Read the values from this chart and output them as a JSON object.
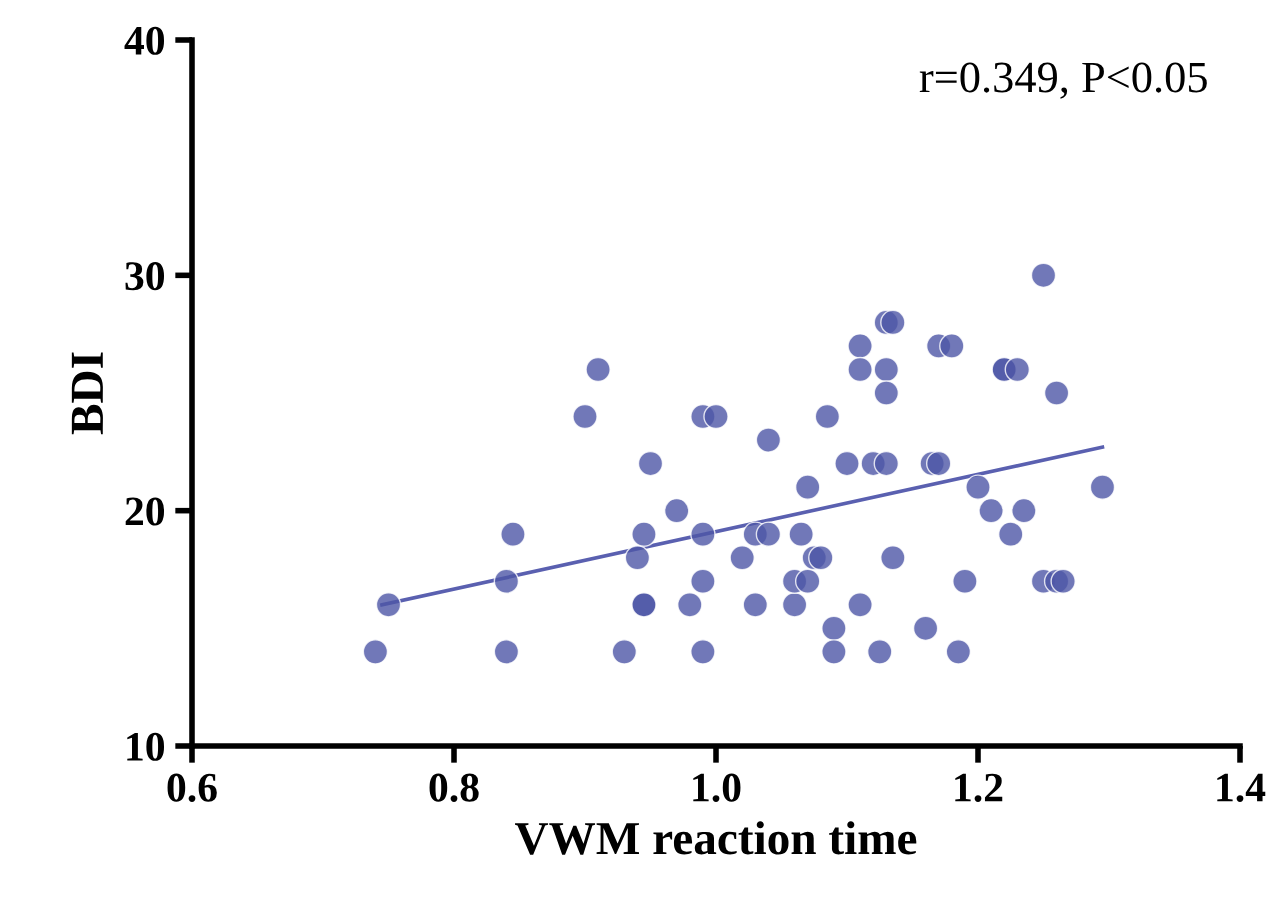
{
  "chart_data": {
    "type": "scatter",
    "xlabel": "VWM reaction time",
    "ylabel": "BDI",
    "annotations": [
      "r=0.349, P<0.05"
    ],
    "xlim": [
      0.6,
      1.4
    ],
    "ylim": [
      10,
      40
    ],
    "xticks": [
      {
        "value": 0.6,
        "label": "0.6"
      },
      {
        "value": 0.8,
        "label": "0.8"
      },
      {
        "value": 1.0,
        "label": "1.0"
      },
      {
        "value": 1.2,
        "label": "1.2"
      },
      {
        "value": 1.4,
        "label": "1.4"
      }
    ],
    "yticks": [
      10,
      20,
      30,
      40
    ],
    "grid": false,
    "marker": "circle",
    "series": [
      {
        "color": "#4e56a6",
        "x": [
          0.74,
          0.75,
          0.84,
          0.84,
          0.845,
          0.9,
          0.91,
          0.93,
          0.94,
          0.945,
          0.945,
          0.945,
          0.95,
          0.97,
          0.98,
          0.99,
          0.99,
          0.99,
          0.99,
          1.0,
          1.02,
          1.03,
          1.03,
          1.04,
          1.04,
          1.06,
          1.06,
          1.065,
          1.07,
          1.07,
          1.075,
          1.08,
          1.085,
          1.09,
          1.09,
          1.1,
          1.11,
          1.11,
          1.11,
          1.12,
          1.125,
          1.13,
          1.135,
          1.13,
          1.13,
          1.13,
          1.135,
          1.16,
          1.165,
          1.17,
          1.17,
          1.18,
          1.185,
          1.19,
          1.2,
          1.21,
          1.22,
          1.22,
          1.225,
          1.23,
          1.235,
          1.25,
          1.25,
          1.26,
          1.26,
          1.265,
          1.295
        ],
        "values": [
          14,
          16,
          14,
          17,
          19,
          24,
          26,
          14,
          18,
          16,
          16,
          19,
          22,
          20,
          16,
          24,
          14,
          19,
          17,
          24,
          18,
          16,
          19,
          23,
          19,
          16,
          17,
          19,
          21,
          17,
          18,
          18,
          24,
          15,
          14,
          22,
          16,
          27,
          26,
          22,
          14,
          28,
          28,
          26,
          25,
          22,
          18,
          15,
          22,
          22,
          27,
          27,
          14,
          17,
          21,
          20,
          26,
          26,
          19,
          26,
          20,
          17,
          30,
          17,
          25,
          17,
          21
        ]
      },
      {
        "type": "line",
        "color": "#5a60b0",
        "marker": "none",
        "x": [
          0.745,
          1.295
        ],
        "values": [
          16.0,
          22.7
        ]
      }
    ]
  }
}
